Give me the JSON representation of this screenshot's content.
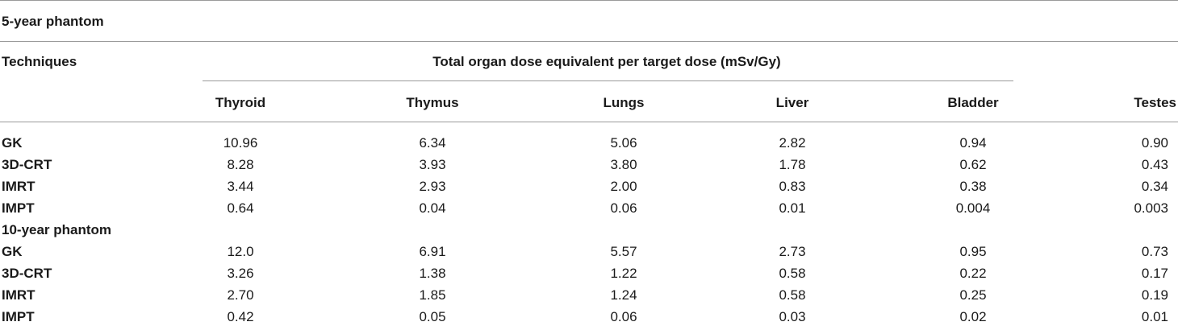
{
  "table": {
    "section1_title": "5-year phantom",
    "section2_title": "10-year phantom",
    "techniques_header": "Techniques",
    "group_header": "Total organ dose equivalent per target dose (mSv/Gy)",
    "columns": [
      "Thyroid",
      "Thymus",
      "Lungs",
      "Liver",
      "Bladder",
      "Testes"
    ],
    "rows_5yr": [
      {
        "technique": "GK",
        "values": [
          "10.96",
          "6.34",
          "5.06",
          "2.82",
          "0.94",
          "0.90"
        ]
      },
      {
        "technique": "3D-CRT",
        "values": [
          "8.28",
          "3.93",
          "3.80",
          "1.78",
          "0.62",
          "0.43"
        ]
      },
      {
        "technique": "IMRT",
        "values": [
          "3.44",
          "2.93",
          "2.00",
          "0.83",
          "0.38",
          "0.34"
        ]
      },
      {
        "technique": "IMPT",
        "values": [
          "0.64",
          "0.04",
          "0.06",
          "0.01",
          "0.004",
          "0.003"
        ]
      }
    ],
    "rows_10yr": [
      {
        "technique": "GK",
        "values": [
          "12.0",
          "6.91",
          "5.57",
          "2.73",
          "0.95",
          "0.73"
        ]
      },
      {
        "technique": "3D-CRT",
        "values": [
          "3.26",
          "1.38",
          "1.22",
          "0.58",
          "0.22",
          "0.17"
        ]
      },
      {
        "technique": "IMRT",
        "values": [
          "2.70",
          "1.85",
          "1.24",
          "0.58",
          "0.25",
          "0.19"
        ]
      },
      {
        "technique": "IMPT",
        "values": [
          "0.42",
          "0.05",
          "0.06",
          "0.03",
          "0.02",
          "0.01"
        ]
      }
    ]
  }
}
